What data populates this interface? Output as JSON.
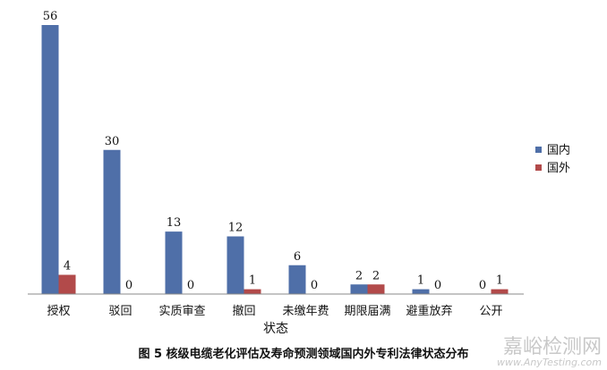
{
  "chart_data": {
    "type": "bar",
    "categories": [
      "授权",
      "驳回",
      "实质审查",
      "撤回",
      "未缴年费",
      "期限届满",
      "避重放弃",
      "公开"
    ],
    "series": [
      {
        "name": "国内",
        "values": [
          56,
          30,
          13,
          12,
          6,
          2,
          1,
          0
        ],
        "color": "#4f6fa8"
      },
      {
        "name": "国外",
        "values": [
          4,
          0,
          0,
          1,
          0,
          2,
          0,
          1
        ],
        "color": "#b24a4a"
      }
    ],
    "xlabel": "状态",
    "ylabel": "",
    "ylim": [
      0,
      56
    ],
    "grid": false,
    "legend": "right"
  },
  "caption": "图 5    核级电缆老化评估及寿命预测领域国内外专利法律状态分布",
  "watermark": {
    "text": "嘉峪检测网",
    "url": "www.AnyTesting.com"
  }
}
